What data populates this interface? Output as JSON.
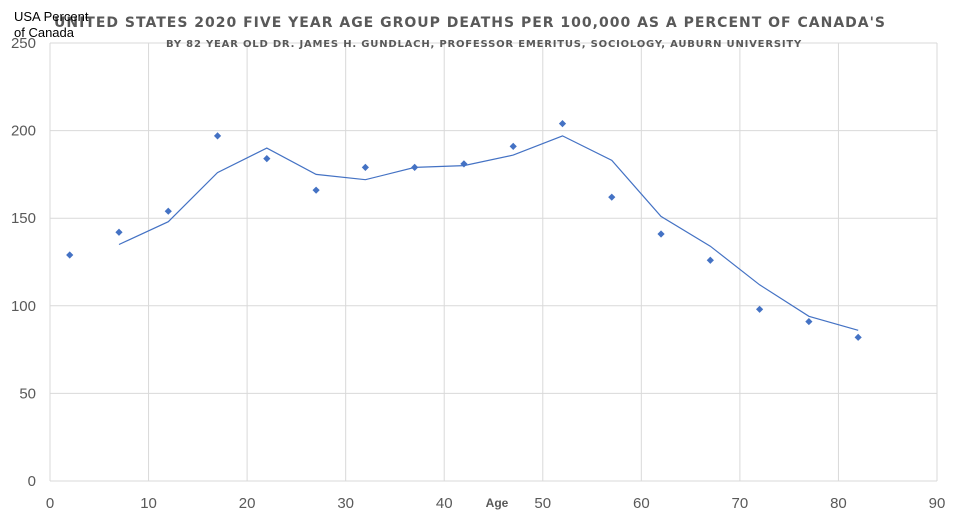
{
  "chart_data": {
    "type": "scatter",
    "title": "UNITED STATES 2020 FIVE YEAR AGE GROUP DEATHS PER 100,000 AS A PERCENT OF CANADA'S",
    "subtitle": "BY 82 YEAR OLD DR. JAMES H. GUNDLACH, PROFESSOR EMERITUS, SOCIOLOGY, AUBURN UNIVERSITY",
    "ylabel_lines": [
      "USA Percent",
      "of Canada"
    ],
    "xlabel": "Age",
    "xlim": [
      0,
      90
    ],
    "ylim": [
      0,
      250
    ],
    "x_ticks": [
      0,
      10,
      20,
      30,
      40,
      50,
      60,
      70,
      80,
      90
    ],
    "y_ticks": [
      0,
      50,
      100,
      150,
      200,
      250
    ],
    "grid": true,
    "colors": {
      "series": "#4472C4",
      "grid": "#d9d9d9",
      "text": "#595959"
    },
    "series": [
      {
        "marker": "diamond",
        "x": [
          2,
          7,
          12,
          17,
          22,
          27,
          32,
          37,
          42,
          47,
          52,
          57,
          62,
          67,
          72,
          77,
          82
        ],
        "y": [
          129,
          142,
          154,
          197,
          184,
          166,
          179,
          179,
          181,
          191,
          204,
          162,
          141,
          126,
          98,
          91,
          82
        ]
      },
      {
        "line": "trend",
        "x": [
          7,
          12,
          17,
          22,
          27,
          32,
          37,
          42,
          47,
          52,
          57,
          62,
          67,
          72,
          77,
          82
        ],
        "y": [
          135,
          148,
          176,
          190,
          175,
          172,
          179,
          180,
          186,
          197,
          183,
          151,
          134,
          112,
          94,
          86
        ]
      }
    ]
  }
}
